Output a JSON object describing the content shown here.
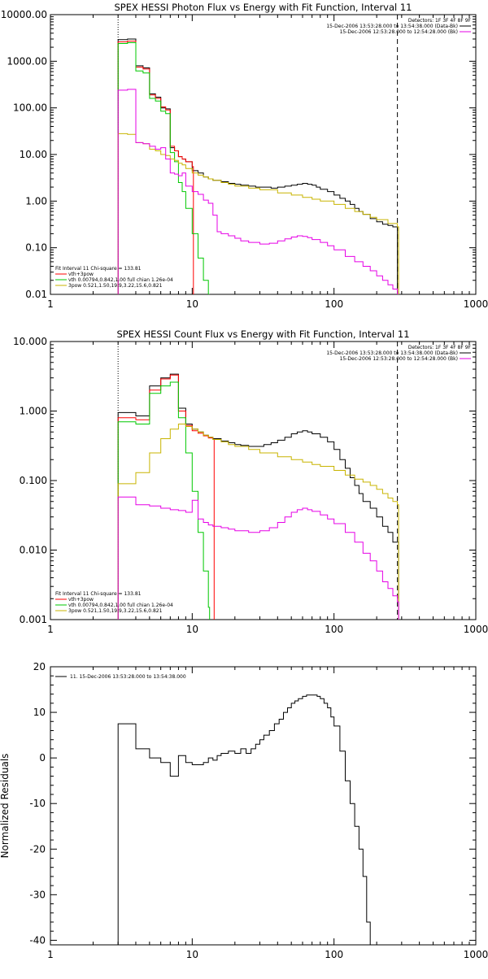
{
  "chart_data": [
    {
      "type": "line",
      "title": "SPEX HESSI Photon Flux vs Energy with Fit Function, Interval 11",
      "xscale": "log",
      "yscale": "log",
      "xlim": [
        1,
        1000
      ],
      "ylim": [
        0.01,
        10000
      ],
      "xticks": [
        "1",
        "10",
        "100",
        "1000"
      ],
      "yticks": [
        "0.01",
        "0.10",
        "1.00",
        "10.00",
        "100.00",
        "1000.00",
        "10000.00"
      ],
      "ref_lines_x": [
        3,
        280
      ],
      "legend_top_right": [
        "Detectors: 1F 3F 4F 8F 9F",
        "15-Dec-2006 13:53:28.000 to 13:54:38.000 (Data-Bk)",
        "15-Dec-2006 12:53:28.000 to 12:54:28.000 (Bk)"
      ],
      "legend_bottom_left": [
        "Fit Interval 11    Chi-square = 133.81",
        "vth+3pow",
        "vth 0.00794,0.842,1.00  full chian 1.26e-04",
        "3pow 0.521,1.50,19.9,3.22,15.6,0.821"
      ],
      "series": [
        {
          "name": "Data-Bk",
          "color": "#000000",
          "x": [
            3,
            3.5,
            4,
            4.5,
            5,
            5.5,
            6,
            6.5,
            7,
            7.5,
            8,
            8.5,
            9,
            10,
            11,
            12,
            13,
            14,
            16,
            18,
            20,
            22,
            25,
            28,
            32,
            36,
            40,
            45,
            50,
            55,
            60,
            65,
            70,
            75,
            80,
            90,
            100,
            110,
            120,
            130,
            140,
            150,
            160,
            180,
            200,
            220,
            240,
            260,
            280
          ],
          "y": [
            2900,
            3000,
            800,
            720,
            200,
            170,
            100,
            95,
            14,
            12,
            9,
            8,
            7,
            4.5,
            4,
            3.3,
            3,
            2.8,
            2.6,
            2.4,
            2.3,
            2.2,
            2.1,
            2.0,
            2.0,
            1.9,
            2.0,
            2.1,
            2.2,
            2.3,
            2.4,
            2.3,
            2.2,
            2.0,
            1.8,
            1.6,
            1.35,
            1.15,
            1.0,
            0.85,
            0.7,
            0.6,
            0.52,
            0.42,
            0.36,
            0.32,
            0.3,
            0.28,
            0.01
          ]
        },
        {
          "name": "vth+3pow",
          "color": "#ff0000",
          "x": [
            3,
            3.5,
            4,
            4.5,
            5,
            5.5,
            6,
            6.5,
            7,
            7.5,
            8,
            8.5,
            9,
            10
          ],
          "y": [
            2600,
            2700,
            750,
            680,
            190,
            160,
            105,
            90,
            15,
            12,
            9,
            8,
            7,
            5.5
          ]
        },
        {
          "name": "vth",
          "color": "#00c800",
          "x": [
            3,
            3.5,
            4,
            4.5,
            5,
            5.5,
            6,
            6.5,
            7,
            7.5,
            8,
            8.5,
            9,
            10,
            11,
            12,
            13
          ],
          "y": [
            2400,
            2500,
            620,
            560,
            160,
            140,
            85,
            75,
            11,
            7,
            2.5,
            1.6,
            0.7,
            0.2,
            0.06,
            0.02,
            0.01
          ]
        },
        {
          "name": "3pow",
          "color": "#c8b400",
          "x": [
            3,
            3.5,
            4,
            4.5,
            5,
            5.5,
            6,
            6.5,
            7,
            7.5,
            8,
            8.5,
            9,
            10,
            11,
            12,
            13,
            14,
            16,
            18,
            20,
            25,
            30,
            40,
            50,
            60,
            70,
            80,
            100,
            120,
            140,
            160,
            180,
            200,
            240,
            280
          ],
          "y": [
            28,
            27,
            18,
            17,
            13,
            12,
            10,
            9.5,
            8,
            7.5,
            6.5,
            6,
            5,
            4,
            3.6,
            3.3,
            3,
            2.8,
            2.5,
            2.3,
            2.1,
            1.9,
            1.75,
            1.5,
            1.35,
            1.2,
            1.1,
            1.0,
            0.85,
            0.7,
            0.6,
            0.52,
            0.45,
            0.4,
            0.33,
            0.28
          ]
        },
        {
          "name": "Bk",
          "color": "#e600e6",
          "x": [
            3,
            3.5,
            4,
            4.5,
            5,
            5.5,
            6,
            6.5,
            7,
            7.5,
            8,
            8.5,
            9,
            10,
            11,
            12,
            13,
            14,
            15,
            16,
            18,
            20,
            22,
            25,
            30,
            35,
            40,
            45,
            50,
            55,
            60,
            65,
            70,
            80,
            90,
            100,
            120,
            140,
            160,
            180,
            200,
            220,
            240,
            260,
            280
          ],
          "y": [
            240,
            250,
            18,
            17,
            15,
            13,
            14,
            8,
            4,
            3.8,
            3.5,
            4,
            2.1,
            1.6,
            1.4,
            1.05,
            0.9,
            0.5,
            0.22,
            0.2,
            0.18,
            0.16,
            0.14,
            0.13,
            0.12,
            0.125,
            0.14,
            0.155,
            0.17,
            0.18,
            0.175,
            0.165,
            0.15,
            0.13,
            0.11,
            0.09,
            0.065,
            0.05,
            0.04,
            0.032,
            0.025,
            0.02,
            0.016,
            0.013,
            0.01
          ]
        }
      ]
    },
    {
      "type": "line",
      "title": "SPEX HESSI Count Flux vs Energy with Fit Function, Interval 11",
      "xscale": "log",
      "yscale": "log",
      "xlim": [
        1,
        1000
      ],
      "ylim": [
        0.001,
        10
      ],
      "xticks": [
        "1",
        "10",
        "100",
        "1000"
      ],
      "yticks": [
        "0.001",
        "0.010",
        "0.100",
        "1.000",
        "10.000"
      ],
      "ref_lines_x": [
        3,
        280
      ],
      "legend_top_right": [
        "Detectors: 1F 3F 4F 8F 9F",
        "15-Dec-2006 13:53:28.000 to 13:54:38.000 (Data-Bk)",
        "15-Dec-2006 12:53:28.000 to 12:54:28.000 (Bk)"
      ],
      "legend_bottom_left": [
        "Fit Interval 11    Chi-square = 133.81",
        "vth+3pow",
        "vth 0.00794,0.842,1.00  full chian 1.26e-04",
        "3pow 0.521,1.50,19.9,3.22,15.6,0.821"
      ],
      "series": [
        {
          "name": "Data-Bk",
          "color": "#000000",
          "x": [
            3,
            4,
            5,
            6,
            7,
            8,
            9,
            10,
            11,
            12,
            13,
            14,
            16,
            18,
            20,
            22,
            25,
            28,
            32,
            36,
            40,
            45,
            50,
            55,
            60,
            65,
            70,
            80,
            90,
            100,
            110,
            120,
            130,
            140,
            150,
            160,
            180,
            200,
            220,
            240,
            260,
            280
          ],
          "y": [
            0.95,
            0.85,
            2.3,
            3.0,
            3.4,
            1.1,
            0.65,
            0.55,
            0.5,
            0.45,
            0.42,
            0.4,
            0.37,
            0.35,
            0.33,
            0.32,
            0.31,
            0.31,
            0.33,
            0.35,
            0.38,
            0.42,
            0.47,
            0.5,
            0.52,
            0.5,
            0.47,
            0.42,
            0.36,
            0.28,
            0.2,
            0.15,
            0.11,
            0.085,
            0.065,
            0.05,
            0.04,
            0.03,
            0.022,
            0.018,
            0.013,
            0.013
          ]
        },
        {
          "name": "vth+3pow",
          "color": "#ff0000",
          "x": [
            3,
            4,
            5,
            6,
            7,
            8,
            9,
            10,
            11,
            12,
            13,
            14
          ],
          "y": [
            0.8,
            0.75,
            2.0,
            2.9,
            3.3,
            1.0,
            0.62,
            0.52,
            0.48,
            0.44,
            0.41,
            0.39
          ]
        },
        {
          "name": "vth",
          "color": "#00c800",
          "x": [
            3,
            4,
            5,
            6,
            7,
            8,
            9,
            10,
            11,
            12,
            13
          ],
          "y": [
            0.7,
            0.65,
            1.8,
            2.3,
            2.6,
            0.8,
            0.25,
            0.07,
            0.018,
            0.005,
            0.0015
          ]
        },
        {
          "name": "3pow",
          "color": "#c8b400",
          "x": [
            3,
            4,
            5,
            6,
            7,
            8,
            9,
            10,
            11,
            12,
            13,
            14,
            16,
            18,
            20,
            25,
            30,
            40,
            50,
            60,
            70,
            80,
            100,
            120,
            140,
            160,
            180,
            200,
            220,
            240,
            260,
            280
          ],
          "y": [
            0.09,
            0.13,
            0.25,
            0.4,
            0.55,
            0.65,
            0.6,
            0.55,
            0.5,
            0.45,
            0.42,
            0.39,
            0.36,
            0.33,
            0.31,
            0.28,
            0.25,
            0.22,
            0.2,
            0.185,
            0.17,
            0.16,
            0.14,
            0.12,
            0.105,
            0.095,
            0.085,
            0.075,
            0.065,
            0.056,
            0.05,
            0.045
          ]
        },
        {
          "name": "Bk",
          "color": "#e600e6",
          "x": [
            3,
            4,
            5,
            6,
            7,
            8,
            9,
            10,
            11,
            12,
            13,
            14,
            16,
            18,
            20,
            22,
            25,
            30,
            35,
            40,
            45,
            50,
            55,
            60,
            65,
            70,
            80,
            90,
            100,
            120,
            140,
            160,
            180,
            200,
            220,
            240,
            260,
            280
          ],
          "y": [
            0.058,
            0.045,
            0.043,
            0.04,
            0.038,
            0.037,
            0.035,
            0.052,
            0.028,
            0.025,
            0.023,
            0.022,
            0.021,
            0.02,
            0.019,
            0.019,
            0.018,
            0.019,
            0.021,
            0.025,
            0.03,
            0.035,
            0.038,
            0.04,
            0.038,
            0.036,
            0.032,
            0.028,
            0.024,
            0.018,
            0.013,
            0.009,
            0.007,
            0.005,
            0.0035,
            0.0028,
            0.0022,
            0.0018
          ]
        }
      ]
    },
    {
      "type": "line",
      "title": "",
      "xscale": "log",
      "yscale": "linear",
      "xlim": [
        1,
        1000
      ],
      "ylim": [
        -41,
        20
      ],
      "xticks": [
        "1",
        "10",
        "100",
        "1000"
      ],
      "yticks": [
        "20",
        "10",
        "0",
        "-10",
        "-20",
        "-30",
        "-40"
      ],
      "ylabel": "Normalized Residuals",
      "legend_top_left": [
        "11. 15-Dec-2006 13:53:28.000 to 13:54:38.000"
      ],
      "series": [
        {
          "name": "11. 15-Dec-2006 13:53:28.000 to 13:54:38.000",
          "color": "#000000",
          "x": [
            3,
            4,
            5,
            6,
            7,
            8,
            9,
            10,
            11,
            12,
            13,
            14,
            15,
            16,
            18,
            20,
            22,
            24,
            26,
            28,
            30,
            32,
            35,
            38,
            41,
            44,
            47,
            50,
            53,
            56,
            60,
            64,
            68,
            72,
            76,
            80,
            85,
            90,
            95,
            100,
            110,
            120,
            130,
            140,
            150,
            160,
            170,
            180,
            190,
            200,
            210,
            220,
            240,
            260,
            280
          ],
          "y": [
            7.5,
            2,
            0,
            -1,
            -4,
            0.5,
            -1,
            -1.5,
            -1.5,
            -1,
            0,
            -0.5,
            0.5,
            1,
            1.5,
            1,
            2,
            1,
            2,
            3,
            4,
            5,
            6,
            7.5,
            8.5,
            10,
            11,
            12,
            12.5,
            13,
            13.5,
            13.8,
            13.8,
            13.8,
            13.5,
            13,
            12,
            11,
            9,
            7,
            1.5,
            -5,
            -10,
            -15,
            -20,
            -26,
            -36,
            -41,
            -41,
            -41,
            -41,
            -41,
            -41,
            -41,
            -41
          ]
        }
      ]
    }
  ]
}
